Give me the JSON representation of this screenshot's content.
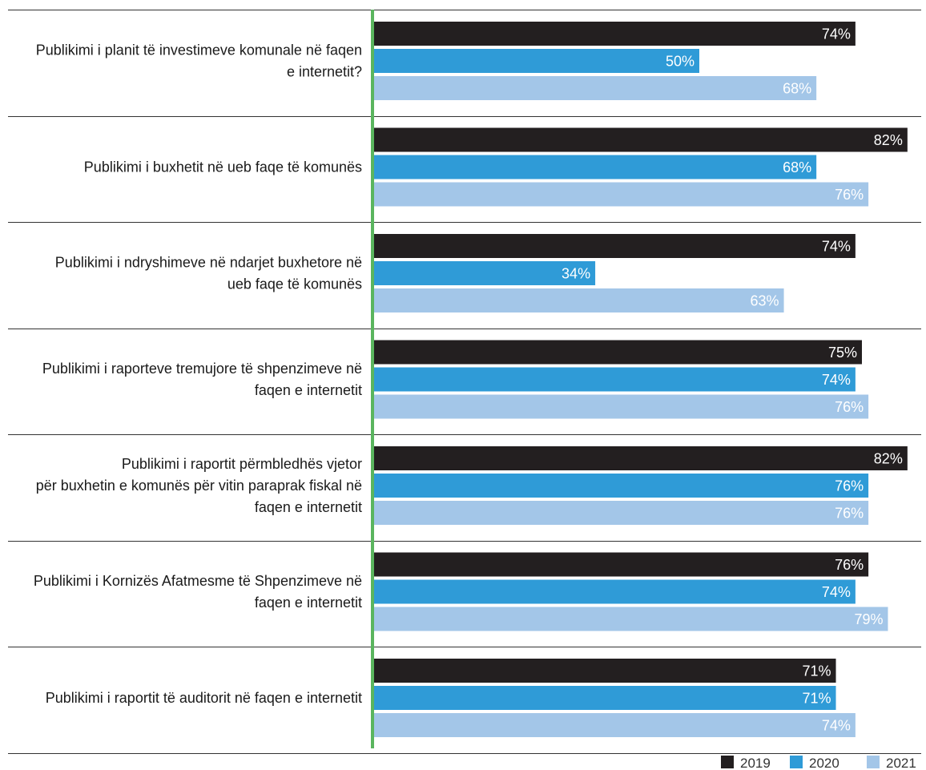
{
  "chart_data": {
    "type": "bar",
    "orientation": "horizontal",
    "xlim": [
      0,
      100
    ],
    "value_suffix": "%",
    "grid": false,
    "legend_position": "bottom-right",
    "categories": [
      [
        "Publikimi i planit të investimeve komunale në faqen",
        "e internetit?"
      ],
      [
        "Publikimi i buxhetit në ueb faqe të komunës"
      ],
      [
        "Publikimi  i ndryshimeve në ndarjet buxhetore në",
        "ueb faqe të komunës"
      ],
      [
        "Publikimi i raporteve tremujore të shpenzimeve në",
        "faqen e internetit"
      ],
      [
        "Publikimi i raportit përmbledhës vjetor",
        "për buxhetin e komunës për vitin paraprak fiskal në",
        "faqen e internetit"
      ],
      [
        "Publikimi i Kornizës Afatmesme të Shpenzimeve në",
        "faqen e internetit"
      ],
      [
        "Publikimi i raportit të auditorit në faqen e internetit"
      ]
    ],
    "series": [
      {
        "name": "2019",
        "color": "#231f20",
        "values": [
          74,
          82,
          74,
          75,
          82,
          76,
          71
        ],
        "labels": [
          "74%",
          "82%",
          "74%",
          "75%",
          "82%",
          "76%",
          "71%"
        ]
      },
      {
        "name": "2020",
        "color": "#2f9bd7",
        "values": [
          50,
          68,
          34,
          74,
          76,
          74,
          71
        ],
        "labels": [
          "50%",
          "68%",
          "34%",
          "74%",
          "76%",
          "74%",
          "71%"
        ]
      },
      {
        "name": "2021",
        "color": "#a3c6e8",
        "values": [
          68,
          76,
          63,
          76,
          76,
          79,
          74
        ],
        "labels": [
          "68%",
          "76%",
          "63%",
          "76%",
          "76%",
          "79%",
          "74%"
        ]
      }
    ],
    "colors": {
      "axis_line": "#5ab55e",
      "separator": "#333333"
    }
  }
}
